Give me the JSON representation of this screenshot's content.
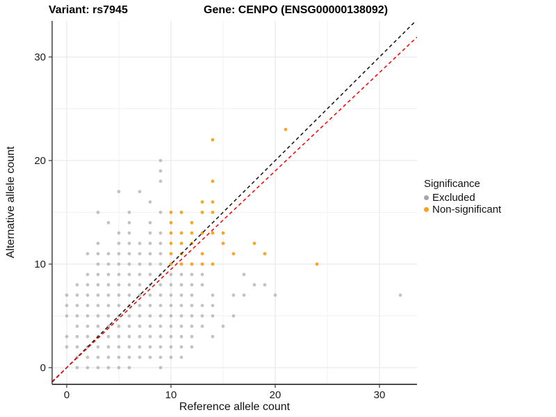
{
  "title": {
    "variant": "Variant: rs7945",
    "gene": "Gene: CENPO (ENSG00000138092)"
  },
  "axes": {
    "x_label": "Reference allele count",
    "y_label": "Alternative allele count"
  },
  "legend": {
    "title": "Significance",
    "items": [
      {
        "label": "Excluded",
        "color": "#A6A6A6"
      },
      {
        "label": "Non-significant",
        "color": "#F9A11B"
      }
    ]
  },
  "chart_data": {
    "type": "scatter",
    "title": "Variant: rs7945   Gene: CENPO (ENSG00000138092)",
    "xlabel": "Reference allele count",
    "ylabel": "Alternative allele count",
    "xlim": [
      -1.4,
      33.6
    ],
    "ylim": [
      -1.6,
      33.5
    ],
    "x_ticks": [
      0,
      10,
      20,
      30
    ],
    "y_ticks": [
      0,
      10,
      20,
      30
    ],
    "x_minor_ticks": [
      5,
      15,
      25
    ],
    "y_minor_ticks": [
      5,
      15,
      25
    ],
    "grid": true,
    "legend_position": "right",
    "colors": {
      "major_grid": "#E5E5E5",
      "minor_grid": "#F2F2F2",
      "axis_line": "#333333",
      "tick_label": "#1A1A1A"
    },
    "series": [
      {
        "name": "Excluded",
        "color": "#A6A6A6",
        "opacity": 0.68,
        "points": [
          [
            1,
            0
          ],
          [
            2,
            0
          ],
          [
            3,
            0
          ],
          [
            4,
            0
          ],
          [
            5,
            0
          ],
          [
            6,
            0
          ],
          [
            9,
            0
          ],
          [
            1,
            1
          ],
          [
            2,
            1
          ],
          [
            3,
            1
          ],
          [
            4,
            1
          ],
          [
            5,
            1
          ],
          [
            6,
            1
          ],
          [
            7,
            1
          ],
          [
            8,
            1
          ],
          [
            9,
            1
          ],
          [
            10,
            1
          ],
          [
            11,
            1
          ],
          [
            0,
            2
          ],
          [
            1,
            2
          ],
          [
            2,
            2
          ],
          [
            3,
            2
          ],
          [
            4,
            2
          ],
          [
            5,
            2
          ],
          [
            6,
            2
          ],
          [
            7,
            2
          ],
          [
            8,
            2
          ],
          [
            9,
            2
          ],
          [
            10,
            2
          ],
          [
            11,
            2
          ],
          [
            12,
            2
          ],
          [
            0,
            3
          ],
          [
            1,
            3
          ],
          [
            2,
            3
          ],
          [
            3,
            3
          ],
          [
            4,
            3
          ],
          [
            5,
            3
          ],
          [
            6,
            3
          ],
          [
            7,
            3
          ],
          [
            8,
            3
          ],
          [
            9,
            3
          ],
          [
            10,
            3
          ],
          [
            11,
            3
          ],
          [
            12,
            3
          ],
          [
            14,
            3
          ],
          [
            1,
            4
          ],
          [
            2,
            4
          ],
          [
            3,
            4
          ],
          [
            4,
            4
          ],
          [
            5,
            4
          ],
          [
            6,
            4
          ],
          [
            7,
            4
          ],
          [
            8,
            4
          ],
          [
            9,
            4
          ],
          [
            10,
            4
          ],
          [
            11,
            4
          ],
          [
            12,
            4
          ],
          [
            13,
            4
          ],
          [
            15,
            4
          ],
          [
            0,
            5
          ],
          [
            1,
            5
          ],
          [
            2,
            5
          ],
          [
            3,
            5
          ],
          [
            4,
            5
          ],
          [
            5,
            5
          ],
          [
            6,
            5
          ],
          [
            7,
            5
          ],
          [
            8,
            5
          ],
          [
            9,
            5
          ],
          [
            10,
            5
          ],
          [
            11,
            5
          ],
          [
            12,
            5
          ],
          [
            13,
            5
          ],
          [
            14,
            5
          ],
          [
            16,
            5
          ],
          [
            0,
            6
          ],
          [
            1,
            6
          ],
          [
            2,
            6
          ],
          [
            3,
            6
          ],
          [
            4,
            6
          ],
          [
            5,
            6
          ],
          [
            6,
            6
          ],
          [
            7,
            6
          ],
          [
            8,
            6
          ],
          [
            9,
            6
          ],
          [
            10,
            6
          ],
          [
            11,
            6
          ],
          [
            12,
            6
          ],
          [
            13,
            6
          ],
          [
            14,
            6
          ],
          [
            0,
            7
          ],
          [
            1,
            7
          ],
          [
            2,
            7
          ],
          [
            3,
            7
          ],
          [
            4,
            7
          ],
          [
            5,
            7
          ],
          [
            6,
            7
          ],
          [
            7,
            7
          ],
          [
            8,
            7
          ],
          [
            9,
            7
          ],
          [
            10,
            7
          ],
          [
            11,
            7
          ],
          [
            12,
            7
          ],
          [
            14,
            7
          ],
          [
            16,
            7
          ],
          [
            17,
            7
          ],
          [
            20,
            7
          ],
          [
            32,
            7
          ],
          [
            1,
            8
          ],
          [
            2,
            8
          ],
          [
            3,
            8
          ],
          [
            4,
            8
          ],
          [
            5,
            8
          ],
          [
            6,
            8
          ],
          [
            7,
            8
          ],
          [
            8,
            8
          ],
          [
            9,
            8
          ],
          [
            10,
            8
          ],
          [
            11,
            8
          ],
          [
            12,
            8
          ],
          [
            13,
            8
          ],
          [
            18,
            8
          ],
          [
            19,
            8
          ],
          [
            2,
            9
          ],
          [
            3,
            9
          ],
          [
            4,
            9
          ],
          [
            5,
            9
          ],
          [
            6,
            9
          ],
          [
            7,
            9
          ],
          [
            8,
            9
          ],
          [
            9,
            9
          ],
          [
            10,
            9
          ],
          [
            11,
            9
          ],
          [
            12,
            9
          ],
          [
            13,
            9
          ],
          [
            17,
            9
          ],
          [
            3,
            10
          ],
          [
            4,
            10
          ],
          [
            5,
            10
          ],
          [
            6,
            10
          ],
          [
            7,
            10
          ],
          [
            8,
            10
          ],
          [
            9,
            10
          ],
          [
            2,
            11
          ],
          [
            3,
            11
          ],
          [
            4,
            11
          ],
          [
            5,
            11
          ],
          [
            6,
            11
          ],
          [
            7,
            11
          ],
          [
            8,
            11
          ],
          [
            9,
            11
          ],
          [
            3,
            12
          ],
          [
            5,
            12
          ],
          [
            6,
            12
          ],
          [
            7,
            12
          ],
          [
            8,
            12
          ],
          [
            9,
            12
          ],
          [
            5,
            13
          ],
          [
            6,
            13
          ],
          [
            8,
            13
          ],
          [
            9,
            13
          ],
          [
            4,
            14
          ],
          [
            6,
            14
          ],
          [
            8,
            14
          ],
          [
            3,
            15
          ],
          [
            6,
            15
          ],
          [
            9,
            15
          ],
          [
            8,
            16
          ],
          [
            5,
            17
          ],
          [
            7,
            17
          ],
          [
            9,
            18
          ],
          [
            9,
            19
          ],
          [
            9,
            20
          ]
        ]
      },
      {
        "name": "Non-significant",
        "color": "#F9A11B",
        "opacity": 0.95,
        "points": [
          [
            10,
            10
          ],
          [
            11,
            10
          ],
          [
            12,
            10
          ],
          [
            13,
            10
          ],
          [
            14,
            10
          ],
          [
            24,
            10
          ],
          [
            10,
            11
          ],
          [
            11,
            11
          ],
          [
            13,
            11
          ],
          [
            16,
            11
          ],
          [
            19,
            11
          ],
          [
            10,
            12
          ],
          [
            11,
            12
          ],
          [
            12,
            12
          ],
          [
            15,
            12
          ],
          [
            18,
            12
          ],
          [
            10,
            13
          ],
          [
            11,
            13
          ],
          [
            12,
            13
          ],
          [
            13,
            13
          ],
          [
            14,
            13
          ],
          [
            15,
            13
          ],
          [
            10,
            14
          ],
          [
            12,
            14
          ],
          [
            10,
            15
          ],
          [
            11,
            15
          ],
          [
            13,
            15
          ],
          [
            14,
            15
          ],
          [
            13,
            16
          ],
          [
            14,
            16
          ],
          [
            14,
            18
          ],
          [
            14,
            22
          ],
          [
            21,
            23
          ]
        ]
      }
    ],
    "reference_lines": [
      {
        "name": "identity",
        "slope": 1,
        "intercept": 0,
        "color": "#1A1A1A",
        "style": "dashed"
      },
      {
        "name": "fit",
        "slope": 0.95,
        "intercept": 0,
        "color": "#F50A0A",
        "style": "dashed"
      }
    ]
  }
}
